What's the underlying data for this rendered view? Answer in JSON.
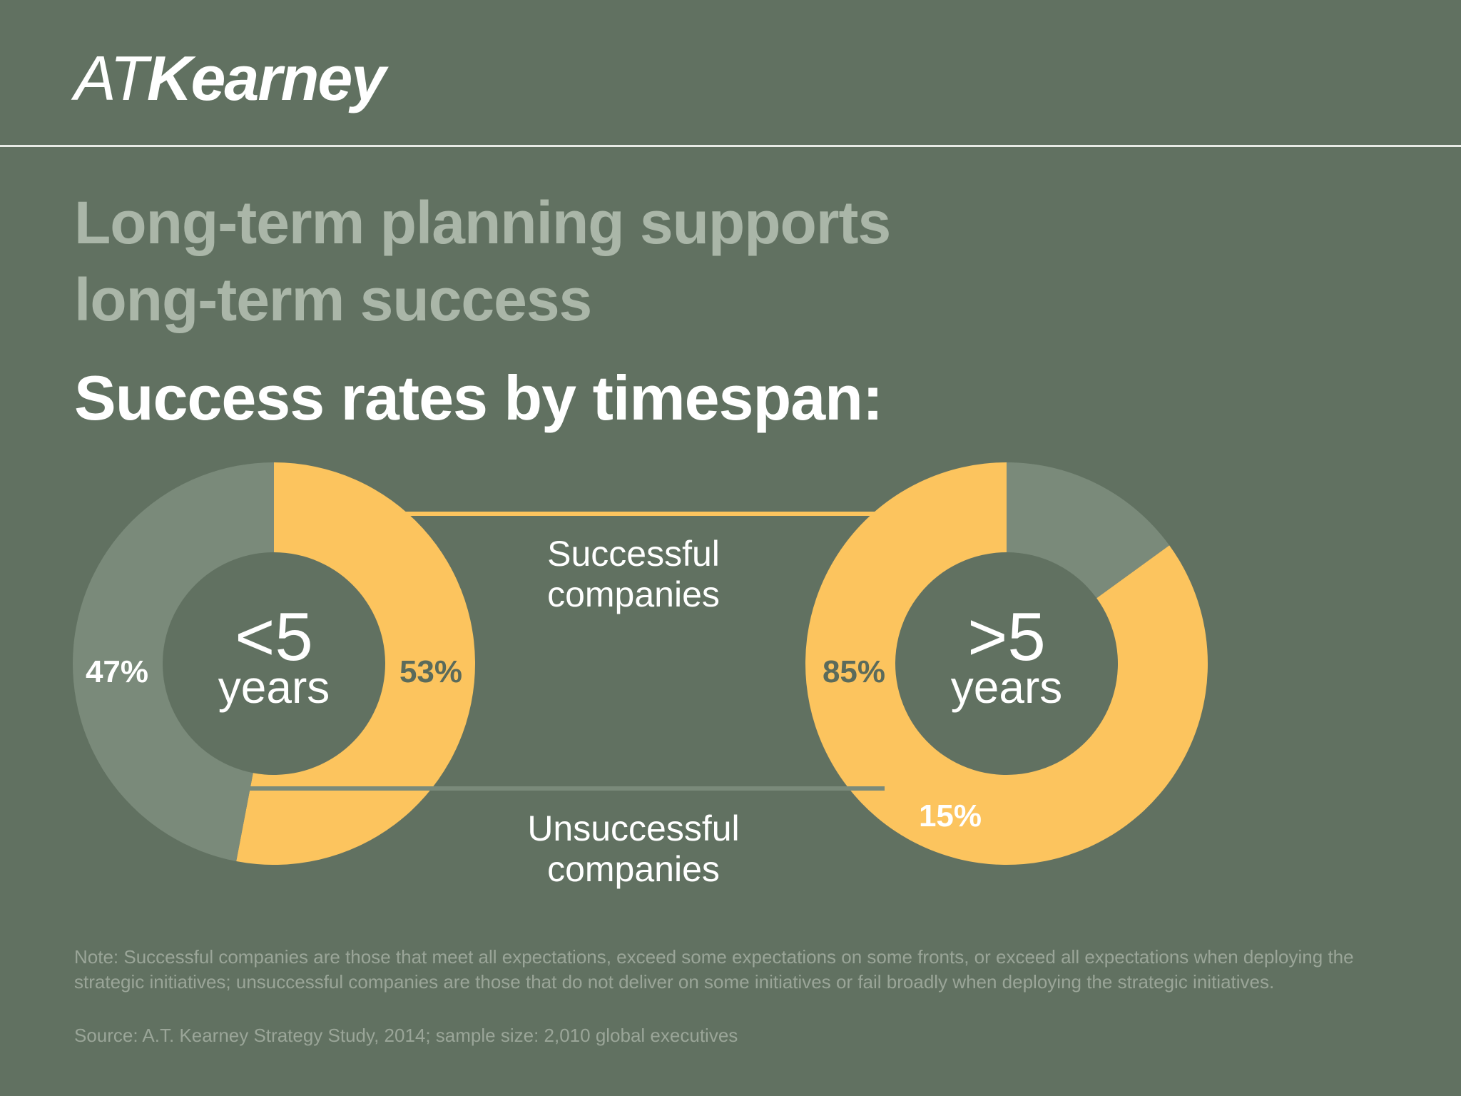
{
  "logo": {
    "prefix": "AT",
    "name": "Kearney"
  },
  "headline": {
    "line1": "Long-term planning supports",
    "line2": "long-term success"
  },
  "subhead": "Success rates by timespan:",
  "colors": {
    "background": "#617161",
    "successful": "#fcc45e",
    "unsuccessful": "#7a8a7a",
    "headline": "#aab6a8",
    "footnote": "#9aa598"
  },
  "legend": {
    "successful": [
      "Successful",
      "companies"
    ],
    "unsuccessful": [
      "Unsuccessful",
      "companies"
    ]
  },
  "chart_data": [
    {
      "type": "pie",
      "center_label": [
        "<5",
        "years"
      ],
      "slices": [
        {
          "label": "Successful companies",
          "value": 53,
          "text": "53%"
        },
        {
          "label": "Unsuccessful companies",
          "value": 47,
          "text": "47%"
        }
      ]
    },
    {
      "type": "pie",
      "center_label": [
        ">5",
        "years"
      ],
      "slices": [
        {
          "label": "Successful companies",
          "value": 85,
          "text": "85%"
        },
        {
          "label": "Unsuccessful companies",
          "value": 15,
          "text": "15%"
        }
      ]
    }
  ],
  "footnote": {
    "note": "Note: Successful companies are those that meet all expectations, exceed some expectations on some fronts, or exceed all expectations when deploying the strategic initiatives; unsuccessful companies are those that do not deliver on some initiatives or fail broadly when deploying the strategic initiatives.",
    "source": "Source: A.T. Kearney Strategy Study, 2014; sample size: 2,010 global executives"
  }
}
